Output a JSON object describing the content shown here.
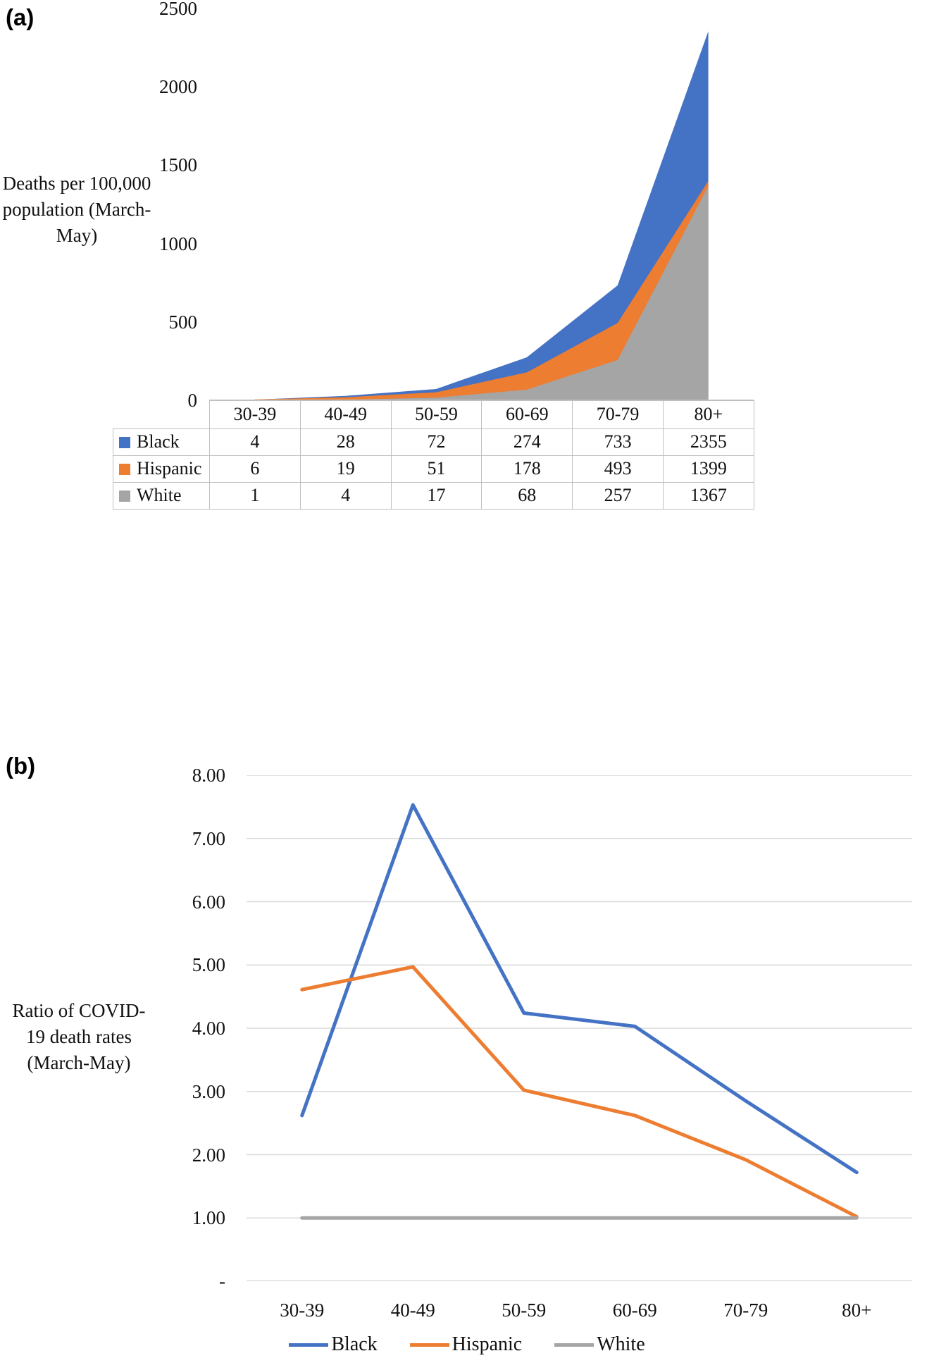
{
  "panels": {
    "a": {
      "label": "(a)",
      "y_axis_title_lines": [
        "Deaths per 100,000",
        "population (March-",
        "May)"
      ]
    },
    "b": {
      "label": "(b)",
      "y_axis_title_lines": [
        "Ratio of COVID-",
        "19 death rates",
        "(March-May)"
      ]
    }
  },
  "colors": {
    "black_series": "#4472C4",
    "hispanic_series": "#ED7D31",
    "white_series": "#A5A5A5",
    "gridline": "#D9D9D9",
    "axis_line": "#BFBFBF",
    "text": "#111111"
  },
  "chart_data": [
    {
      "type": "area",
      "title": "",
      "xlabel": "",
      "ylabel": "Deaths per 100,000 population (March-May)",
      "categories": [
        "30-39",
        "40-49",
        "50-59",
        "60-69",
        "70-79",
        "80+"
      ],
      "series": [
        {
          "name": "Black",
          "color": "#4472C4",
          "values": [
            4,
            28,
            72,
            274,
            733,
            2355
          ]
        },
        {
          "name": "Hispanic",
          "color": "#ED7D31",
          "values": [
            6,
            19,
            51,
            178,
            493,
            1399
          ]
        },
        {
          "name": "White",
          "color": "#A5A5A5",
          "values": [
            1,
            4,
            17,
            68,
            257,
            1367
          ]
        }
      ],
      "ylim": [
        0,
        2500
      ],
      "yticks": [
        0,
        500,
        1000,
        1500,
        2000,
        2500
      ],
      "grid": false,
      "legend_position": "data-table-left",
      "data_table": true
    },
    {
      "type": "line",
      "title": "",
      "xlabel": "",
      "ylabel": "Ratio of COVID-19 death rates (March-May)",
      "categories": [
        "30-39",
        "40-49",
        "50-59",
        "60-69",
        "70-79",
        "80+"
      ],
      "series": [
        {
          "name": "Black",
          "color": "#4472C4",
          "values": [
            2.62,
            7.53,
            4.24,
            4.03,
            2.85,
            1.72
          ]
        },
        {
          "name": "Hispanic",
          "color": "#ED7D31",
          "values": [
            4.61,
            4.97,
            3.02,
            2.62,
            1.92,
            1.02
          ]
        },
        {
          "name": "White",
          "color": "#A5A5A5",
          "values": [
            1.0,
            1.0,
            1.0,
            1.0,
            1.0,
            1.0
          ]
        }
      ],
      "ylim": [
        0,
        8
      ],
      "ytick_labels": [
        "-",
        "1.00",
        "2.00",
        "3.00",
        "4.00",
        "5.00",
        "6.00",
        "7.00",
        "8.00"
      ],
      "grid": true,
      "legend_position": "bottom"
    }
  ]
}
